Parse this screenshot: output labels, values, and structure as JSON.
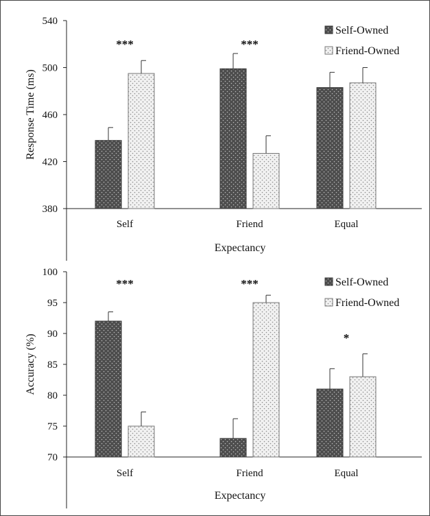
{
  "chart_data": [
    {
      "type": "bar",
      "title": "",
      "xlabel": "Expectancy",
      "ylabel": "Response Time (ms)",
      "categories": [
        "Self",
        "Friend",
        "Equal"
      ],
      "ylim": [
        380,
        540
      ],
      "yticks": [
        380,
        420,
        460,
        500,
        540
      ],
      "grid": false,
      "legend_position": "top-right",
      "series": [
        {
          "name": "Self-Owned",
          "values": [
            438,
            499,
            483
          ],
          "errors": [
            11,
            13,
            13
          ],
          "color": "#555555",
          "pattern": "dark-dotted"
        },
        {
          "name": "Friend-Owned",
          "values": [
            495,
            427,
            487
          ],
          "errors": [
            11,
            15,
            13
          ],
          "color": "#e6e6e6",
          "pattern": "light-dotted"
        }
      ],
      "annotations": [
        {
          "category": "Self",
          "text": "***"
        },
        {
          "category": "Friend",
          "text": "***"
        }
      ]
    },
    {
      "type": "bar",
      "title": "",
      "xlabel": "Expectancy",
      "ylabel": "Accuracy (%)",
      "categories": [
        "Self",
        "Friend",
        "Equal"
      ],
      "ylim": [
        70,
        100
      ],
      "yticks": [
        70,
        75,
        80,
        85,
        90,
        95,
        100
      ],
      "grid": false,
      "legend_position": "top-right",
      "series": [
        {
          "name": "Self-Owned",
          "values": [
            92,
            73,
            81
          ],
          "errors": [
            1.5,
            3.2,
            3.3
          ],
          "color": "#555555",
          "pattern": "dark-dotted"
        },
        {
          "name": "Friend-Owned",
          "values": [
            75,
            95,
            83
          ],
          "errors": [
            2.3,
            1.2,
            3.7
          ],
          "color": "#e6e6e6",
          "pattern": "light-dotted"
        }
      ],
      "annotations": [
        {
          "category": "Self",
          "text": "***"
        },
        {
          "category": "Friend",
          "text": "***"
        },
        {
          "category": "Equal",
          "text": "*"
        }
      ]
    }
  ]
}
